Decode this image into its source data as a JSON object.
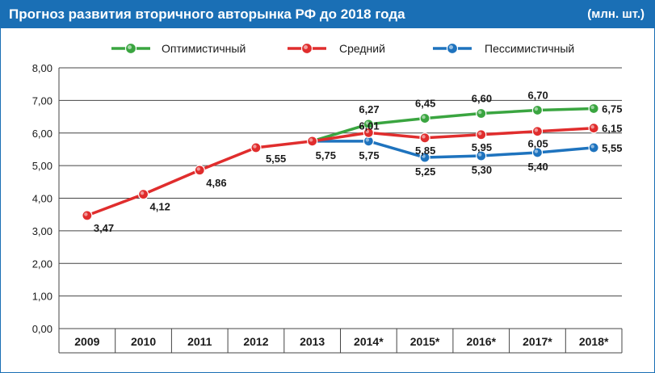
{
  "header": {
    "title": "Прогноз развития вторичного авторынка РФ до 2018 года",
    "units": "(млн. шт.)"
  },
  "colors": {
    "header_bg": "#1a6fb5",
    "optimistic": "#3aa540",
    "medium": "#e02d2d",
    "pessimistic": "#1e73be"
  },
  "chart_data": {
    "type": "line",
    "title": "Прогноз развития вторичного авторынка РФ до 2018 года",
    "ylabel": "(млн. шт.)",
    "xlabel": "",
    "categories": [
      "2009",
      "2010",
      "2011",
      "2012",
      "2013",
      "2014*",
      "2015*",
      "2016*",
      "2017*",
      "2018*"
    ],
    "ylim": [
      0,
      8
    ],
    "yticks": [
      "0,00",
      "1,00",
      "2,00",
      "3,00",
      "4,00",
      "5,00",
      "6,00",
      "7,00",
      "8,00"
    ],
    "grid": true,
    "legend_position": "top",
    "series": [
      {
        "name": "Оптимистичный",
        "color": "#3aa540",
        "values": [
          null,
          null,
          null,
          null,
          5.75,
          6.27,
          6.45,
          6.6,
          6.7,
          6.75
        ],
        "labels": [
          "",
          "",
          "",
          "",
          "",
          "6,27",
          "6,45",
          "6,60",
          "6,70",
          "6,75"
        ]
      },
      {
        "name": "Средний",
        "color": "#e02d2d",
        "values": [
          3.47,
          4.12,
          4.86,
          5.55,
          5.75,
          6.01,
          5.85,
          5.95,
          6.05,
          6.15
        ],
        "labels": [
          "3,47",
          "4,12",
          "4,86",
          "5,55",
          "5,75",
          "6,01",
          "5,85",
          "5,95",
          "6,05",
          "6,15"
        ]
      },
      {
        "name": "Пессимистичный",
        "color": "#1e73be",
        "values": [
          null,
          null,
          null,
          null,
          5.75,
          5.75,
          5.25,
          5.3,
          5.4,
          5.55
        ],
        "labels": [
          "",
          "",
          "",
          "",
          "",
          "5,75",
          "5,25",
          "5,30",
          "5,40",
          "5,55"
        ]
      }
    ]
  }
}
